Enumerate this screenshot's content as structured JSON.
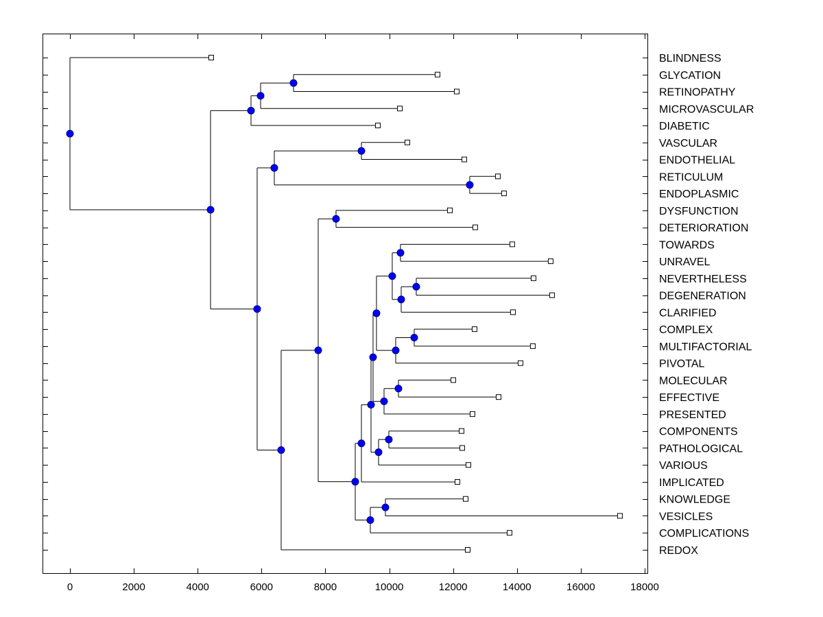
{
  "chart_data": {
    "type": "dendrogram",
    "title": "",
    "xlabel": "",
    "ylabel": "",
    "xlim": [
      -900,
      18100
    ],
    "xticks": [
      0,
      2000,
      4000,
      6000,
      8000,
      10000,
      12000,
      14000,
      16000,
      18000
    ],
    "xtick_labels": [
      "0",
      "2000",
      "4000",
      "6000",
      "8000",
      "10000",
      "12000",
      "14000",
      "16000",
      "18000"
    ],
    "grid": false,
    "colors": {
      "node_fill": "#0000ff",
      "node_stroke": "#000080",
      "line": "#000000",
      "leaf_fill": "#ffffff"
    },
    "leaves": [
      {
        "label": "BLINDNESS",
        "value": 4424
      },
      {
        "label": "GLYCATION",
        "value": 11512
      },
      {
        "label": "RETINOPATHY",
        "value": 12113
      },
      {
        "label": "MICROVASCULAR",
        "value": 10331
      },
      {
        "label": "DIABETIC",
        "value": 9643
      },
      {
        "label": "VASCULAR",
        "value": 10567
      },
      {
        "label": "ENDOTHELIAL",
        "value": 12350
      },
      {
        "label": "RETICULUM",
        "value": 13402
      },
      {
        "label": "ENDOPLASMIC",
        "value": 13595
      },
      {
        "label": "DYSFUNCTION",
        "value": 11899
      },
      {
        "label": "DETERIORATION",
        "value": 12693
      },
      {
        "label": "TOWARDS",
        "value": 13853
      },
      {
        "label": "UNRAVEL",
        "value": 15056
      },
      {
        "label": "NEVERTHELESS",
        "value": 14519
      },
      {
        "label": "DEGENERATION",
        "value": 15099
      },
      {
        "label": "CLARIFIED",
        "value": 13875
      },
      {
        "label": "COMPLEX",
        "value": 12672
      },
      {
        "label": "MULTIFACTORIAL",
        "value": 14497
      },
      {
        "label": "PIVOTAL",
        "value": 14111
      },
      {
        "label": "MOLECULAR",
        "value": 12006
      },
      {
        "label": "EFFECTIVE",
        "value": 13424
      },
      {
        "label": "PRESENTED",
        "value": 12607
      },
      {
        "label": "COMPONENTS",
        "value": 12264
      },
      {
        "label": "PATHOLOGICAL",
        "value": 12285
      },
      {
        "label": "VARIOUS",
        "value": 12478
      },
      {
        "label": "IMPLICATED",
        "value": 12135
      },
      {
        "label": "KNOWLEDGE",
        "value": 12393
      },
      {
        "label": "VESICLES",
        "value": 17225
      },
      {
        "label": "COMPLICATIONS",
        "value": 13767
      },
      {
        "label": "REDOX",
        "value": 12457
      }
    ],
    "tree": {
      "value": 0,
      "children": [
        "BLINDNESS",
        {
          "value": 4403,
          "children": [
            {
              "value": 5670,
              "children": [
                {
                  "value": 5971,
                  "children": [
                    {
                      "value": 7002,
                      "children": [
                        "GLYCATION",
                        "RETINOPATHY"
                      ]
                    },
                    "MICROVASCULAR"
                  ]
                },
                "DIABETIC"
              ]
            },
            {
              "value": 5863,
              "children": [
                {
                  "value": 6400,
                  "children": [
                    {
                      "value": 9128,
                      "children": [
                        "VASCULAR",
                        "ENDOTHELIAL"
                      ]
                    },
                    {
                      "value": 12521,
                      "children": [
                        "RETICULUM",
                        "ENDOPLASMIC"
                      ]
                    }
                  ]
                },
                {
                  "value": 6615,
                  "children": [
                    {
                      "value": 7775,
                      "children": [
                        {
                          "value": 8333,
                          "children": [
                            "DYSFUNCTION",
                            "DETERIORATION"
                          ]
                        },
                        {
                          "value": 8935,
                          "children": [
                            {
                              "value": 9128,
                              "children": [
                                {
                                  "value": 9429,
                                  "children": [
                                    {
                                      "value": 9493,
                                      "children": [
                                        {
                                          "value": 9600,
                                          "children": [
                                            {
                                              "value": 10094,
                                              "children": [
                                                {
                                                  "value": 10352,
                                                  "children": [
                                                    "TOWARDS",
                                                    "UNRAVEL"
                                                  ]
                                                },
                                                {
                                                  "value": 10374,
                                                  "children": [
                                                    {
                                                      "value": 10846,
                                                      "children": [
                                                        "NEVERTHELESS",
                                                        "DEGENERATION"
                                                      ]
                                                    },
                                                    "CLARIFIED"
                                                  ]
                                                }
                                              ]
                                            },
                                            {
                                              "value": 10202,
                                              "children": [
                                                {
                                                  "value": 10782,
                                                  "children": [
                                                    "COMPLEX",
                                                    "MULTIFACTORIAL"
                                                  ]
                                                },
                                                "PIVOTAL"
                                              ]
                                            }
                                          ]
                                        },
                                        {
                                          "value": 9837,
                                          "children": [
                                            {
                                              "value": 10288,
                                              "children": [
                                                "MOLECULAR",
                                                "EFFECTIVE"
                                              ]
                                            },
                                            "PRESENTED"
                                          ]
                                        }
                                      ]
                                    },
                                    {
                                      "value": 9665,
                                      "children": [
                                        {
                                          "value": 9987,
                                          "children": [
                                            "COMPONENTS",
                                            "PATHOLOGICAL"
                                          ]
                                        },
                                        "VARIOUS"
                                      ]
                                    }
                                  ]
                                },
                                "IMPLICATED"
                              ]
                            },
                            {
                              "value": 9407,
                              "children": [
                                {
                                  "value": 9880,
                                  "children": [
                                    "KNOWLEDGE",
                                    "VESICLES"
                                  ]
                                },
                                "COMPLICATIONS"
                              ]
                            }
                          ]
                        }
                      ]
                    },
                    "REDOX"
                  ]
                }
              ]
            }
          ]
        }
      ]
    }
  }
}
